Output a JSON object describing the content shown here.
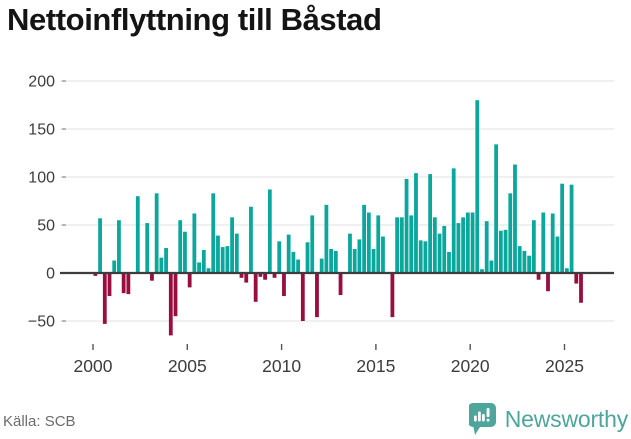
{
  "header": {
    "title": "Nettoinflyttning till Båstad"
  },
  "footer": {
    "source": "Källa: SCB",
    "brand": "Newsworthy"
  },
  "colors": {
    "positive_bar": "#0ba79d",
    "negative_bar": "#990d3f",
    "gridline": "#e6e6e6",
    "zero_line": "#3d3d3d",
    "axis_text": "#3c3c3c",
    "tick_mark": "#8a8a8a",
    "brand_teal": "#4da59c",
    "source_text": "#6b6b6b",
    "title_text": "#141414"
  },
  "chart_data": {
    "type": "bar",
    "title": "Nettoinflyttning till Båstad",
    "xlabel": "",
    "ylabel": "",
    "ylim": [
      -75,
      210
    ],
    "grid": "horizontal",
    "legend_position": "none",
    "yticks": [
      200,
      150,
      100,
      50,
      0,
      -50
    ],
    "xticks": [
      2000,
      2005,
      2010,
      2015,
      2020,
      2025
    ],
    "x": [
      "2000 Q1",
      "2000 Q2",
      "2000 Q3",
      "2000 Q4",
      "2001 Q1",
      "2001 Q2",
      "2001 Q3",
      "2001 Q4",
      "2002 Q1",
      "2002 Q2",
      "2002 Q3",
      "2002 Q4",
      "2003 Q1",
      "2003 Q2",
      "2003 Q3",
      "2003 Q4",
      "2004 Q1",
      "2004 Q2",
      "2004 Q3",
      "2004 Q4",
      "2005 Q1",
      "2005 Q2",
      "2005 Q3",
      "2005 Q4",
      "2006 Q1",
      "2006 Q2",
      "2006 Q3",
      "2006 Q4",
      "2007 Q1",
      "2007 Q2",
      "2007 Q3",
      "2007 Q4",
      "2008 Q1",
      "2008 Q2",
      "2008 Q3",
      "2008 Q4",
      "2009 Q1",
      "2009 Q2",
      "2009 Q3",
      "2009 Q4",
      "2010 Q1",
      "2010 Q2",
      "2010 Q3",
      "2010 Q4",
      "2011 Q1",
      "2011 Q2",
      "2011 Q3",
      "2011 Q4",
      "2012 Q1",
      "2012 Q2",
      "2012 Q3",
      "2012 Q4",
      "2013 Q1",
      "2013 Q2",
      "2013 Q3",
      "2013 Q4",
      "2014 Q1",
      "2014 Q2",
      "2014 Q3",
      "2014 Q4",
      "2015 Q1",
      "2015 Q2",
      "2015 Q3",
      "2015 Q4",
      "2016 Q1",
      "2016 Q2",
      "2016 Q3",
      "2016 Q4",
      "2017 Q1",
      "2017 Q2",
      "2017 Q3",
      "2017 Q4",
      "2018 Q1",
      "2018 Q2",
      "2018 Q3",
      "2018 Q4",
      "2019 Q1",
      "2019 Q2",
      "2019 Q3",
      "2019 Q4",
      "2020 Q1",
      "2020 Q2",
      "2020 Q3",
      "2020 Q4",
      "2021 Q1",
      "2021 Q2",
      "2021 Q3",
      "2021 Q4",
      "2022 Q1",
      "2022 Q2",
      "2022 Q3",
      "2022 Q4",
      "2023 Q1",
      "2023 Q2",
      "2023 Q3",
      "2023 Q4",
      "2024 Q1",
      "2024 Q2",
      "2024 Q3",
      "2024 Q4",
      "2025 Q1",
      "2025 Q2",
      "2025 Q3",
      "2025 Q4"
    ],
    "values": [
      -3,
      57,
      -53,
      -24,
      13,
      55,
      -21,
      -22,
      0,
      80,
      0,
      52,
      -8,
      83,
      16,
      26,
      -65,
      -45,
      55,
      43,
      -15,
      62,
      11,
      24,
      5,
      83,
      39,
      27,
      28,
      58,
      41,
      -5,
      -10,
      69,
      -30,
      -4,
      -7,
      87,
      -5,
      33,
      -24,
      40,
      22,
      14,
      -50,
      32,
      60,
      -46,
      15,
      71,
      25,
      23,
      -23,
      0,
      41,
      25,
      35,
      71,
      63,
      25,
      60,
      38,
      0,
      -46,
      58,
      58,
      98,
      60,
      104,
      34,
      33,
      103,
      58,
      41,
      49,
      22,
      109,
      52,
      58,
      63,
      63,
      180,
      4,
      54,
      13,
      134,
      44,
      45,
      83,
      113,
      28,
      23,
      18,
      55,
      -7,
      63,
      -19,
      62,
      38,
      93,
      5,
      92,
      -11,
      -31
    ]
  }
}
